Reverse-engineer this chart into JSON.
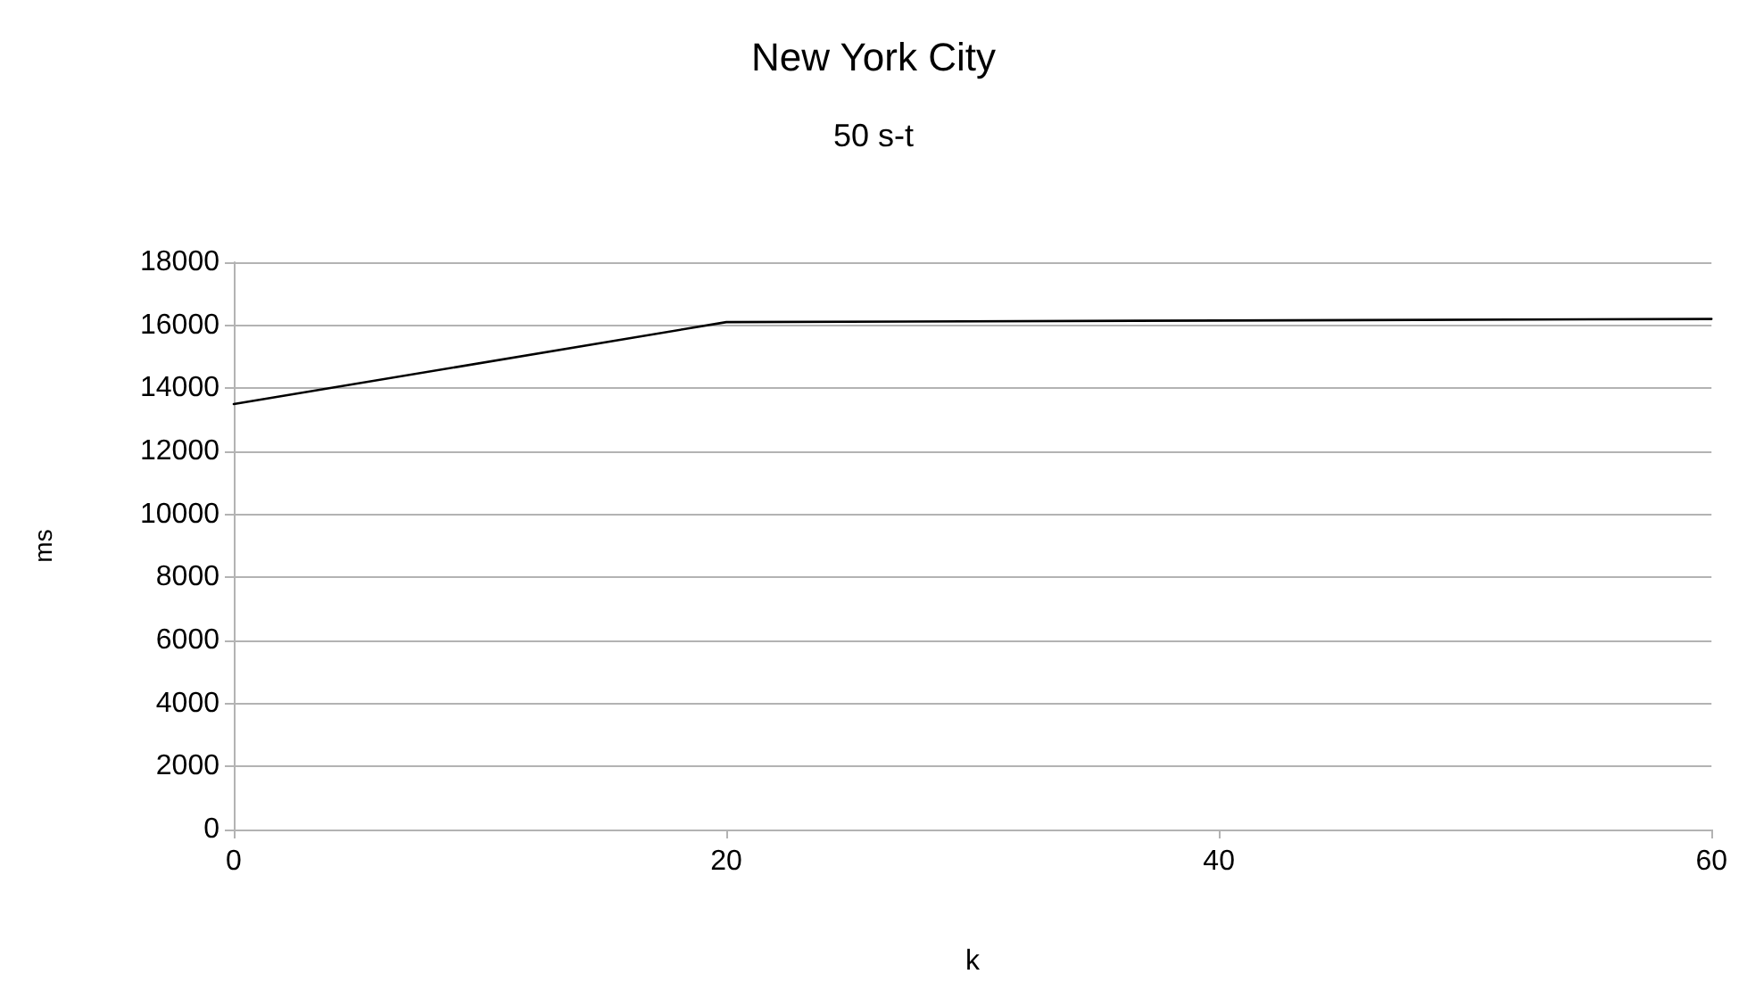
{
  "chart_data": {
    "type": "line",
    "title": "New York City",
    "subtitle": "50 s-t",
    "xlabel": "k",
    "ylabel": "ms",
    "x": [
      0,
      20,
      40,
      60
    ],
    "series": [
      {
        "color": "#000000",
        "values": [
          13500,
          16100,
          16150,
          16200
        ]
      }
    ],
    "xlim": [
      0,
      60
    ],
    "xticks": [
      0,
      20,
      40,
      60
    ],
    "ylim": [
      0,
      18000
    ],
    "yticks": [
      0,
      2000,
      4000,
      6000,
      8000,
      10000,
      12000,
      14000,
      16000,
      18000
    ],
    "grid": "y",
    "marker": "none",
    "line_style": "solid"
  }
}
